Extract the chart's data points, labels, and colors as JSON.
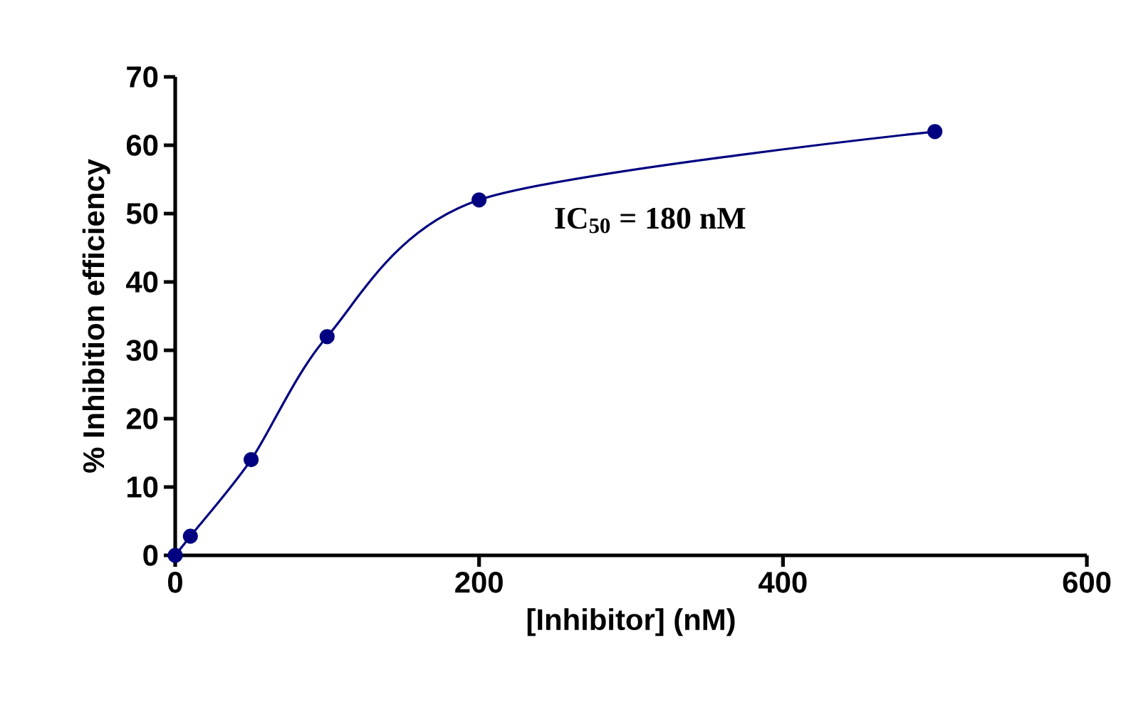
{
  "chart_data": {
    "type": "line",
    "xlabel": "[Inhibitor] (nM)",
    "ylabel": "% Inhibition efficiency",
    "x": [
      0,
      10,
      50,
      100,
      200,
      500
    ],
    "series": [
      {
        "color": "#000080",
        "values": [
          0,
          2.8,
          14,
          32,
          52,
          62
        ]
      }
    ],
    "xlim": [
      0,
      600
    ],
    "ylim": [
      0,
      70
    ],
    "xticks": [
      0,
      200,
      400,
      600
    ],
    "yticks": [
      0,
      10,
      20,
      30,
      40,
      50,
      60,
      70
    ],
    "marker": "circle",
    "line_style": "solid",
    "grid": false,
    "annotations": [
      "IC$_{50}$ = 180 nM"
    ]
  }
}
